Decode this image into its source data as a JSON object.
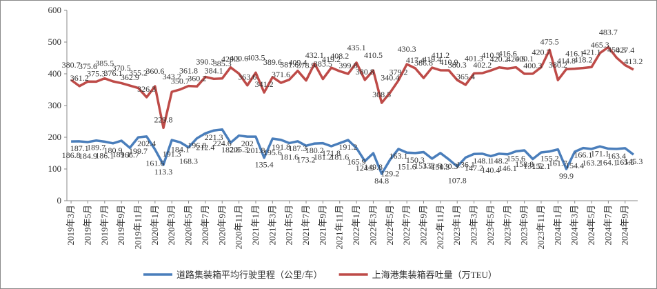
{
  "chart_data": {
    "type": "line",
    "categories": [
      "2019年3月",
      null,
      "2019年5月",
      null,
      "2019年7月",
      null,
      "2019年9月",
      null,
      "2019年11月",
      null,
      "2020年1月",
      null,
      "2020年3月",
      null,
      "2020年5月",
      null,
      "2020年7月",
      null,
      "2020年9月",
      null,
      "2020年11月",
      null,
      "2021年1月",
      null,
      "2021年3月",
      null,
      "2021年5月",
      null,
      "2021年7月",
      null,
      "2021年9月",
      null,
      "2021年11月",
      null,
      "2022年1月",
      null,
      "2022年3月",
      null,
      "2022年5月",
      null,
      "2022年7月",
      null,
      "2022年9月",
      null,
      "2022年11月",
      null,
      "2023年1月",
      null,
      "2023年3月",
      null,
      "2023年5月",
      null,
      "2023年7月",
      null,
      "2023年9月",
      null,
      "2023年11月",
      null,
      "2024年1月",
      null,
      "2024年3月",
      null,
      "2024年5月",
      null,
      "2024年7月",
      null,
      "2024年9月",
      null
    ],
    "series": [
      {
        "name": "道路集装箱平均行驶里程（公里/车）",
        "color": "#4a7ebb",
        "values": [
          186.8,
          187.1,
          184.9,
          189.7,
          186.1,
          180.9,
          189.1,
          166.7,
          199.7,
          202.4,
          161.6,
          113.3,
          191.3,
          184.1,
          168.3,
          196.8,
          212.4,
          221.3,
          224.6,
          182.8,
          205.3,
          202.0,
          201.8,
          135.4,
          195.6,
          191.8,
          181.6,
          187.3,
          173.2,
          180.2,
          181.2,
          171.8,
          181.6,
          191.2,
          165.9,
          124.9,
          149.8,
          84.8,
          129.2,
          163.1,
          151.6,
          150.3,
          153.2,
          132.6,
          150.3,
          130.3,
          107.8,
          136.1,
          147.2,
          148.1,
          140.4,
          148.2,
          146.1,
          155.6,
          158.8,
          131.5,
          152.1,
          155.2,
          161.7,
          99.9,
          154.4,
          166.1,
          163.2,
          171.1,
          164.1,
          163.4,
          165.5,
          145.3
        ]
      },
      {
        "name": "上海港集装箱吞吐量（万TEU）",
        "color": "#be4b48",
        "values": [
          380.7,
          361.2,
          375.6,
          375.3,
          385.5,
          376.1,
          370.5,
          362.9,
          355.2,
          326.3,
          360.6,
          229.8,
          343.2,
          350.7,
          361.8,
          360.2,
          390.3,
          384.1,
          385.3,
          420.3,
          400.6,
          363.6,
          403.5,
          341.2,
          389.6,
          371.6,
          381.6,
          409.4,
          378.9,
          432.1,
          383.5,
          419.2,
          408.2,
          399.8,
          435.1,
          380.8,
          410.5,
          308.5,
          340.4,
          379.2,
          430.3,
          417.4,
          386.8,
          419.4,
          411.2,
          410.9,
          380.3,
          365.4,
          401.3,
          402.2,
          410.5,
          420.2,
          416.6,
          420.5,
          400.1,
          400.3,
          420.7,
          475.5,
          380.2,
          414.8,
          416.1,
          418.2,
          421.1,
          465.3,
          483.7,
          450.3,
          427.4,
          413.2
        ]
      }
    ],
    "ylim": [
      0,
      600
    ],
    "yticks": [
      0,
      100,
      200,
      300,
      400,
      500,
      600
    ],
    "legend": "bottom"
  }
}
